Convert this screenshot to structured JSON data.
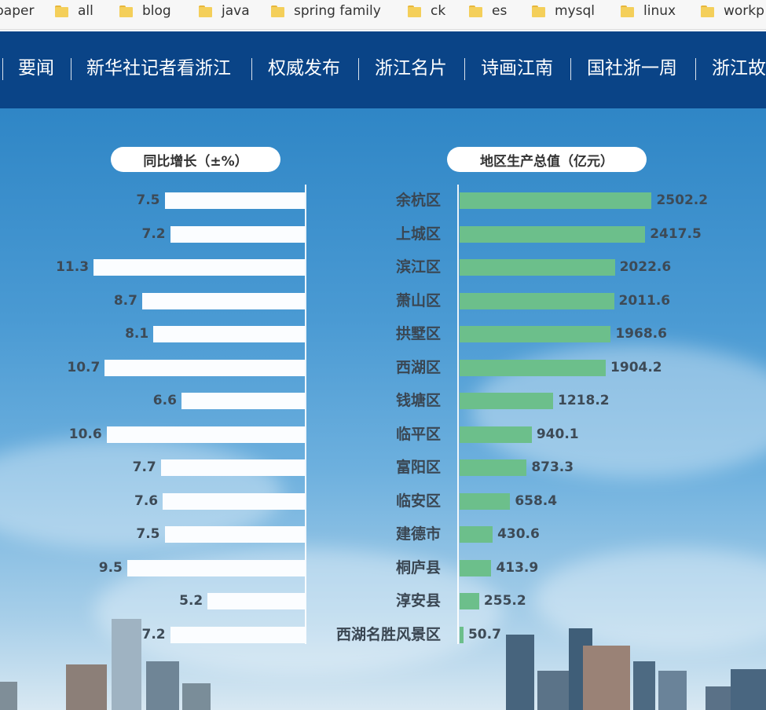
{
  "bookmarks": [
    {
      "label": "paper"
    },
    {
      "label": "all"
    },
    {
      "label": "blog"
    },
    {
      "label": "java"
    },
    {
      "label": "spring family"
    },
    {
      "label": "ck"
    },
    {
      "label": "es"
    },
    {
      "label": "mysql"
    },
    {
      "label": "linux"
    },
    {
      "label": "workp"
    }
  ],
  "nav": {
    "items": [
      {
        "label": "要闻"
      },
      {
        "label": "新华社记者看浙江"
      },
      {
        "label": "权威发布"
      },
      {
        "label": "浙江名片"
      },
      {
        "label": "诗画江南"
      },
      {
        "label": "国社浙一周"
      },
      {
        "label": "浙江故"
      }
    ]
  },
  "infographic": {
    "left_heading": "同比增长（±%）",
    "right_heading": "地区生产总值（亿元）",
    "colors": {
      "growth_bar": "#fbfdff",
      "gdp_bar": "#6cbf8b"
    }
  },
  "chart_data": {
    "type": "bar",
    "categories": [
      "余杭区",
      "上城区",
      "滨江区",
      "萧山区",
      "拱墅区",
      "西湖区",
      "钱塘区",
      "临平区",
      "富阳区",
      "临安区",
      "建德市",
      "桐庐县",
      "淳安县",
      "西湖名胜风景区"
    ],
    "series": [
      {
        "name": "同比增长（±%）",
        "values": [
          7.5,
          7.2,
          11.3,
          8.7,
          8.1,
          10.7,
          6.6,
          10.6,
          7.7,
          7.6,
          7.5,
          9.5,
          5.2,
          7.2
        ],
        "labels": [
          "7.5",
          "7.2",
          "11.3",
          "8.7",
          "8.1",
          "10.7",
          "6.6",
          "10.6",
          "7.7",
          "7.6",
          "7.5",
          "9.5",
          "5.2",
          "7.2"
        ]
      },
      {
        "name": "地区生产总值（亿元）",
        "values": [
          2502.2,
          2417.5,
          2022.6,
          2011.6,
          1968.6,
          1904.2,
          1218.2,
          940.1,
          873.3,
          658.4,
          430.6,
          413.9,
          255.2,
          50.7
        ],
        "labels": [
          "2502.2",
          "2417.5",
          "2022.6",
          "2011.6",
          "1968.6",
          "1904.2",
          "1218.2",
          "940.1",
          "873.3",
          "658.4",
          "430.6",
          "413.9",
          "255.2",
          "50.7"
        ]
      }
    ],
    "title": "",
    "xlabel": "",
    "ylabel": ""
  }
}
